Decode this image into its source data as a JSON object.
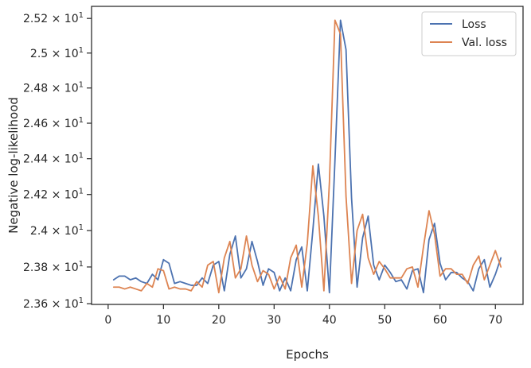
{
  "chart_data": {
    "type": "line",
    "xlabel": "Epochs",
    "ylabel": "Negative log-likelihood",
    "xlim": [
      -3,
      75
    ],
    "ylim": [
      23.596,
      25.27
    ],
    "x_ticks": [
      0,
      10,
      20,
      30,
      40,
      50,
      60,
      70
    ],
    "y_ticks": [
      {
        "value": 23.6,
        "mantissa": "2.36",
        "exponent": "1"
      },
      {
        "value": 23.8,
        "mantissa": "2.38",
        "exponent": "1"
      },
      {
        "value": 24.0,
        "mantissa": "2.4",
        "exponent": "1"
      },
      {
        "value": 24.2,
        "mantissa": "2.42",
        "exponent": "1"
      },
      {
        "value": 24.4,
        "mantissa": "2.44",
        "exponent": "1"
      },
      {
        "value": 24.6,
        "mantissa": "2.46",
        "exponent": "1"
      },
      {
        "value": 24.8,
        "mantissa": "2.48",
        "exponent": "1"
      },
      {
        "value": 25.0,
        "mantissa": "2.5",
        "exponent": "1"
      },
      {
        "value": 25.2,
        "mantissa": "2.52",
        "exponent": "1"
      }
    ],
    "y_scale": "log",
    "legend_position": "top-right",
    "grid": false,
    "x": [
      1,
      2,
      3,
      4,
      5,
      6,
      7,
      8,
      9,
      10,
      11,
      12,
      13,
      14,
      15,
      16,
      17,
      18,
      19,
      20,
      21,
      22,
      23,
      24,
      25,
      26,
      27,
      28,
      29,
      30,
      31,
      32,
      33,
      34,
      35,
      36,
      37,
      38,
      39,
      40,
      41,
      42,
      43,
      44,
      45,
      46,
      47,
      48,
      49,
      50,
      51,
      52,
      53,
      54,
      55,
      56,
      57,
      58,
      59,
      60,
      61,
      62,
      63,
      64,
      65,
      66,
      67,
      68,
      69,
      70,
      71
    ],
    "series": [
      {
        "name": "Loss",
        "color": "#4c72b0",
        "values": [
          23.73,
          23.75,
          23.75,
          23.73,
          23.74,
          23.72,
          23.71,
          23.76,
          23.73,
          23.84,
          23.82,
          23.71,
          23.72,
          23.71,
          23.7,
          23.7,
          23.74,
          23.71,
          23.81,
          23.83,
          23.67,
          23.87,
          23.97,
          23.74,
          23.79,
          23.94,
          23.83,
          23.7,
          23.79,
          23.77,
          23.67,
          23.74,
          23.67,
          23.84,
          23.91,
          23.67,
          24.0,
          24.37,
          24.08,
          23.66,
          24.39,
          25.19,
          25.02,
          24.18,
          23.69,
          23.96,
          24.08,
          23.81,
          23.73,
          23.81,
          23.77,
          23.72,
          23.73,
          23.68,
          23.78,
          23.79,
          23.66,
          23.95,
          24.04,
          23.82,
          23.73,
          23.77,
          23.77,
          23.74,
          23.72,
          23.67,
          23.79,
          23.84,
          23.69,
          23.76,
          23.85
        ]
      },
      {
        "name": "Val. loss",
        "color": "#dd8452",
        "values": [
          23.69,
          23.69,
          23.68,
          23.69,
          23.68,
          23.67,
          23.71,
          23.69,
          23.79,
          23.78,
          23.68,
          23.69,
          23.68,
          23.68,
          23.67,
          23.72,
          23.69,
          23.81,
          23.83,
          23.66,
          23.85,
          23.94,
          23.74,
          23.79,
          23.97,
          23.81,
          23.72,
          23.78,
          23.76,
          23.68,
          23.75,
          23.68,
          23.85,
          23.92,
          23.69,
          23.93,
          24.36,
          24.08,
          23.67,
          24.27,
          25.19,
          25.11,
          24.19,
          23.71,
          24.0,
          24.09,
          23.85,
          23.76,
          23.83,
          23.79,
          23.74,
          23.74,
          23.74,
          23.79,
          23.8,
          23.69,
          23.91,
          24.11,
          23.98,
          23.75,
          23.79,
          23.79,
          23.76,
          23.76,
          23.71,
          23.81,
          23.86,
          23.73,
          23.81,
          23.89,
          23.8
        ]
      }
    ]
  }
}
